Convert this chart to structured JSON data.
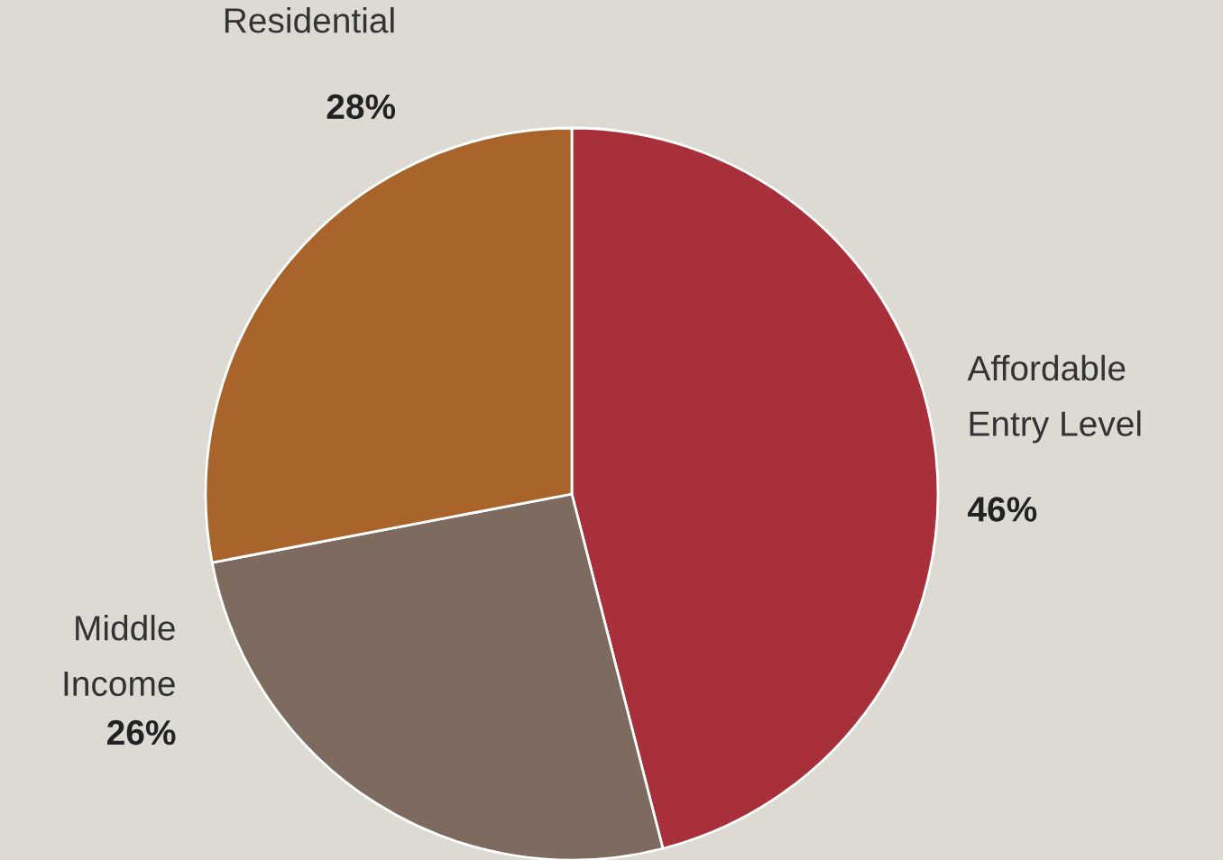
{
  "chart_data": {
    "type": "pie",
    "categories": [
      "Affordable\nEntry Level",
      "Middle\nIncome",
      "Residential"
    ],
    "values": [
      46,
      26,
      28
    ],
    "colors": [
      "#a8303a",
      "#7d6b5f",
      "#a8642a"
    ],
    "value_labels": [
      "46%",
      "26%",
      "28%"
    ]
  }
}
